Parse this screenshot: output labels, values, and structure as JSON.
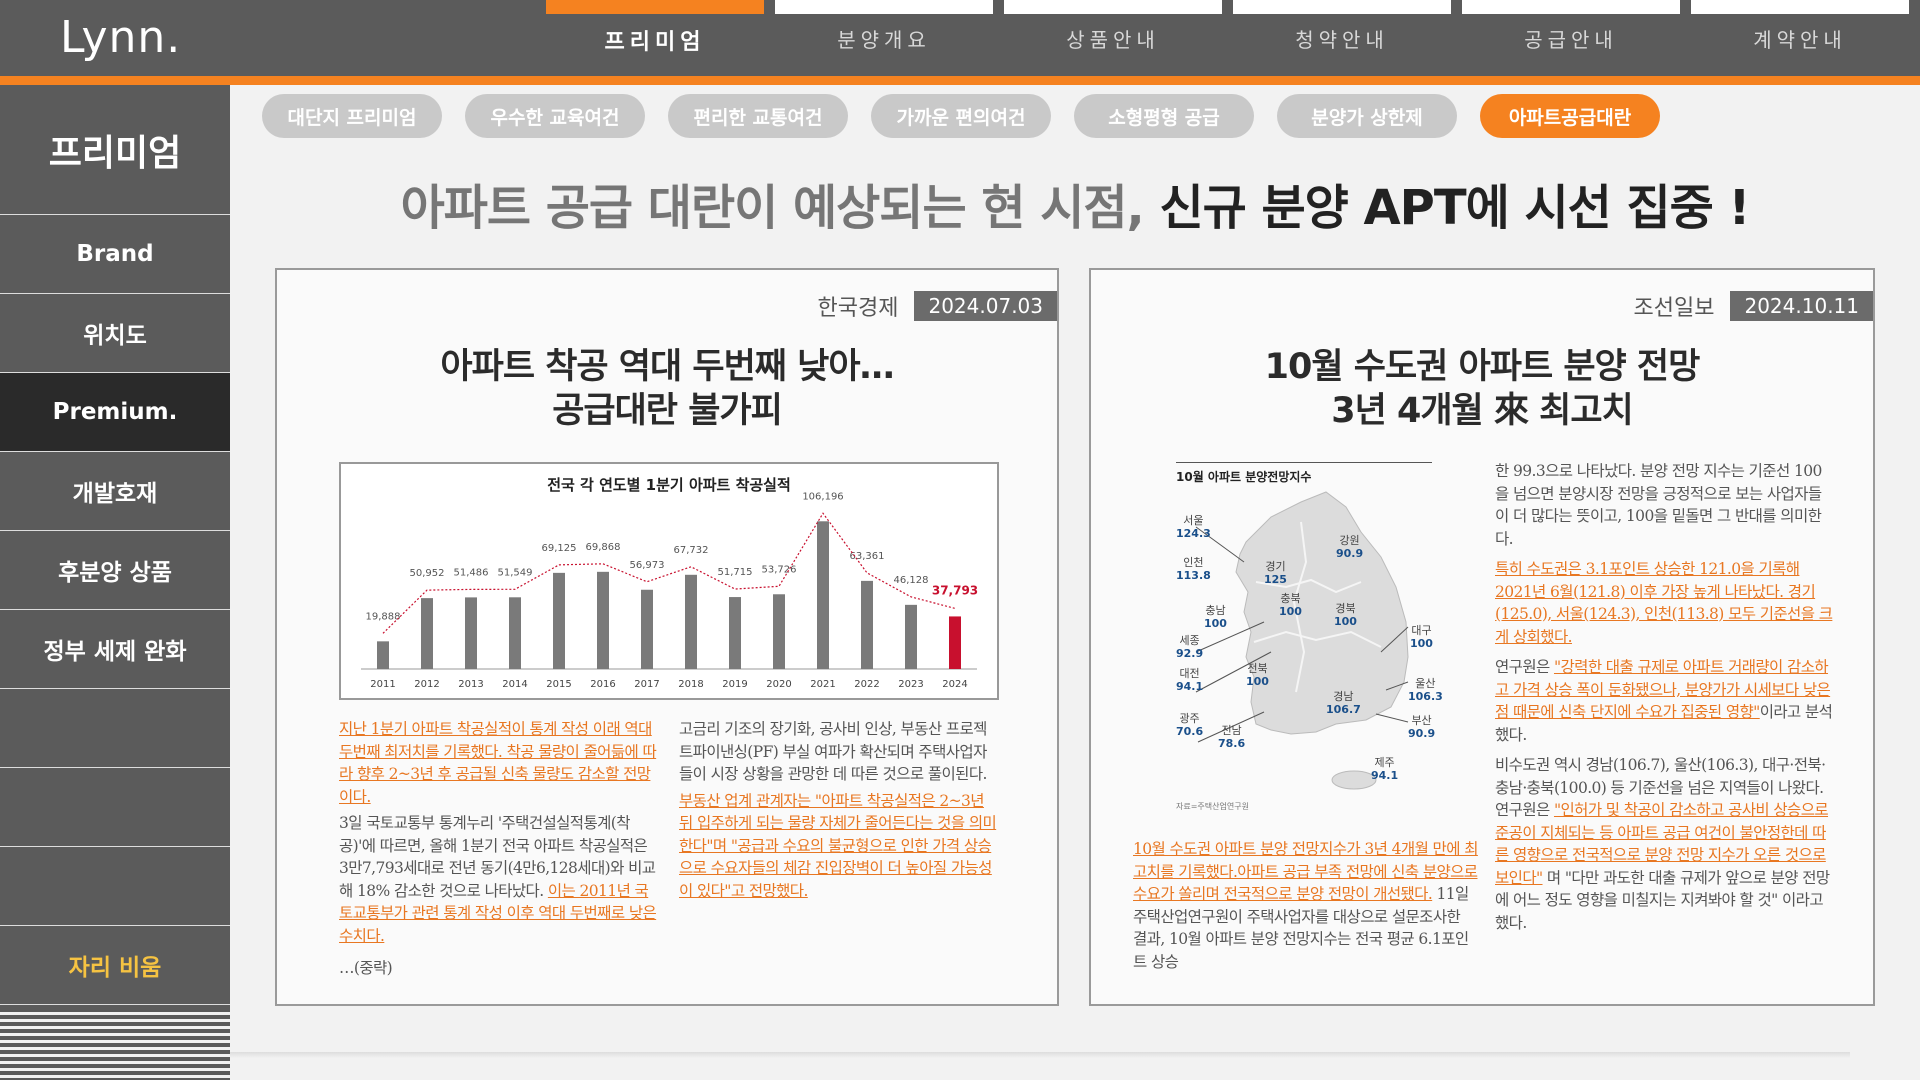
{
  "logo": "Lynn.",
  "topnav": [
    {
      "label": "프리미엄",
      "active": true
    },
    {
      "label": "분양개요",
      "active": false
    },
    {
      "label": "상품안내",
      "active": false
    },
    {
      "label": "청약안내",
      "active": false
    },
    {
      "label": "공급안내",
      "active": false
    },
    {
      "label": "계약안내",
      "active": false
    }
  ],
  "sidebar": {
    "title": "프리미엄",
    "items": [
      "Brand",
      "위치도",
      "Premium.",
      "개발호재",
      "후분양 상품",
      "정부 세제 완화",
      "",
      "",
      "",
      "자리 비움"
    ]
  },
  "tabs": [
    "대단지 프리미엄",
    "우수한 교육여건",
    "편리한 교통여건",
    "가까운 편의여건",
    "소형평형 공급",
    "분양가 상한제",
    "아파트공급대란"
  ],
  "headline": {
    "part1": "아파트 공급 대란이 예상되는 현 시점, ",
    "part2": "신규 분양 APT에 시선 집중 !"
  },
  "left_article": {
    "publisher": "한국경제",
    "date": "2024.07.03",
    "title_line1": "아파트 착공 역대 두번째 낮아…",
    "title_line2": "공급대란 불가피",
    "col1_hl": "지난 1분기 아파트 착공실적이 통계 작성 이래 역대 두번째 최저치를 기록했다. 착공 물량이 줄어듦에 따라 향후 2~3년 후 공급될 신축 물량도 감소할 전망이다.",
    "col1_text": "3일 국토교통부 통계누리 '주택건설실적통계(착공)'에 따르면, 올해 1분기 전국 아파트 착공실적은 3만7,793세대로 전년 동기(4만6,128세대)와 비교해 18% 감소한 것으로 나타났다. ",
    "col1_hl2": "이는 2011년 국토교통부가 관련 통계 작성 이후 역대 두번째로 낮은 수치다.",
    "col1_end": "…(중략)",
    "col2_text": "고금리 기조의 장기화, 공사비 인상, 부동산 프로젝트파이낸싱(PF) 부실 여파가 확산되며 주택사업자들이 시장 상황을 관망한 데 따른 것으로 풀이된다.",
    "col2_hl": "부동산 업계 관계자는 \"아파트 착공실적은 2~3년 뒤 입주하게 되는 물량 자체가 줄어든다는 것을 의미한다\"며 \"공급과 수요의 불균형으로 인한 가격 상승으로 수요자들의 체감 진입장벽이 더 높아질 가능성이 있다\"고 전망했다."
  },
  "chart_data": {
    "type": "bar",
    "title": "전국 각 연도별 1분기 아파트 착공실적",
    "categories": [
      "2011",
      "2012",
      "2013",
      "2014",
      "2015",
      "2016",
      "2017",
      "2018",
      "2019",
      "2020",
      "2021",
      "2022",
      "2023",
      "2024"
    ],
    "values": [
      19888,
      50952,
      51486,
      51549,
      69125,
      69868,
      56973,
      67732,
      51715,
      53726,
      106196,
      63361,
      46128,
      37793
    ],
    "labels": [
      "19,888",
      "50,952",
      "51,486",
      "51,549",
      "69,125",
      "69,868",
      "56,973",
      "67,732",
      "51,715",
      "53,726",
      "106,196",
      "63,361",
      "46,128",
      "37,793"
    ],
    "bar_color": "#7a7a7a",
    "highlight_color": "#c8102e",
    "trend_line": "dashed red",
    "ylim": [
      0,
      110000
    ]
  },
  "right_article": {
    "publisher": "조선일보",
    "date": "2024.10.11",
    "title_line1": "10월 수도권 아파트 분양 전망",
    "title_line2": "3년 4개월 來 최고치",
    "map_title": "10월 아파트 분양전망지수",
    "map_source": "자료=주택산업연구원",
    "regions": [
      {
        "name": "서울",
        "value": "124.3"
      },
      {
        "name": "인천",
        "value": "113.8"
      },
      {
        "name": "경기",
        "value": "125"
      },
      {
        "name": "강원",
        "value": "90.9"
      },
      {
        "name": "충남",
        "value": "100"
      },
      {
        "name": "충북",
        "value": "100"
      },
      {
        "name": "경북",
        "value": "100"
      },
      {
        "name": "세종",
        "value": "92.9"
      },
      {
        "name": "대구",
        "value": "100"
      },
      {
        "name": "대전",
        "value": "94.1"
      },
      {
        "name": "전북",
        "value": "100"
      },
      {
        "name": "경남",
        "value": "106.7"
      },
      {
        "name": "울산",
        "value": "106.3"
      },
      {
        "name": "광주",
        "value": "70.6"
      },
      {
        "name": "부산",
        "value": "90.9"
      },
      {
        "name": "전남",
        "value": "78.6"
      },
      {
        "name": "제주",
        "value": "94.1"
      }
    ],
    "below_hl": "10월 수도권 아파트 분양 전망지수가 3년 4개월 만에 최고치를 기록했다.아파트 공급 부족 전망에 신축 분양으로 수요가 쏠리며 전국적으로 분양 전망이 개선됐다.",
    "below_text": " 11일 주택산업연구원이 주택사업자를 대상으로 설문조사한 결과, 10월 아파트 분양 전망지수는 전국 평균 6.1포인트 상승",
    "col2_p1": "한 99.3으로 나타났다. 분양 전망 지수는 기준선 100을 넘으면 분양시장 전망을 긍정적으로 보는 사업자들이 더 많다는 뜻이고, 100을 밑돌면 그 반대를 의미한다.",
    "col2_p2_hl": "특히 수도권은 3.1포인트 상승한 121.0을 기록해 2021년 6월(121.8) 이후 가장 높게 나타났다. 경기(125.0), 서울(124.3), 인천(113.8) 모두 기준선을 크게 상회했다.",
    "col2_p3_a": "연구원은 ",
    "col2_p3_hl": "\"강력한 대출 규제로 아파트 거래량이 감소하고 가격 상승 폭이 둔화됐으나, 분양가가 시세보다 낮은 점 때문에 신축 단지에 수요가 집중된 영향\"",
    "col2_p3_b": "이라고 분석했다.",
    "col2_p4_a": "비수도권 역시 경남(106.7), 울산(106.3), 대구·전북·충남·충북(100.0) 등 기준선을 넘은 지역들이 나왔다. 연구원은 ",
    "col2_p4_hl": "\"인허가 및 착공이 감소하고 공사비 상승으로 준공이 지체되는 등 아파트 공급 여건이 불안정한데 따른 영향으로 전국적으로 분양 전망 지수가 오른 것으로 보인다\"",
    "col2_p4_b": " 며 \"다만 과도한 대출 규제가 앞으로 분양 전망에 어느 정도 영향을 미칠지는 지켜봐야 할 것\" 이라고 했다."
  }
}
